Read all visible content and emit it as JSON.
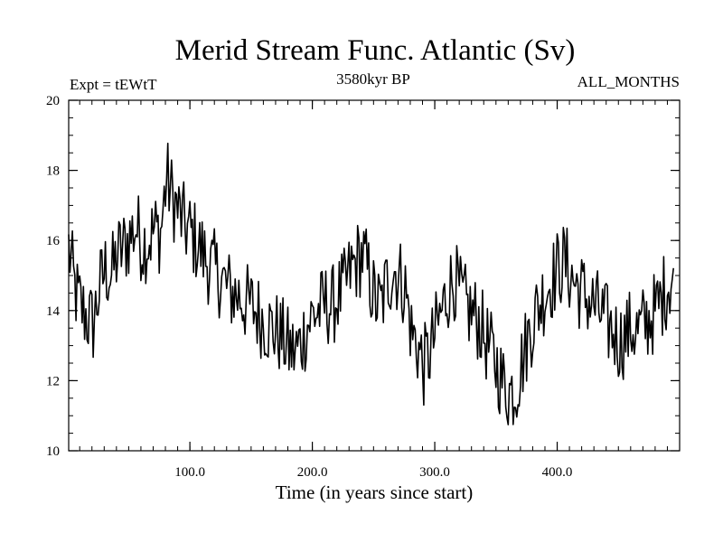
{
  "chart_data": {
    "type": "line",
    "title": "Merid Stream Func. Atlantic (Sv)",
    "subtitle_left": "Expt = tEWtT",
    "subtitle_center": "3580kyr BP",
    "subtitle_right": "ALL_MONTHS",
    "xlabel": "Time (in years since start)",
    "ylabel": "",
    "xlim": [
      1,
      500
    ],
    "ylim": [
      10,
      20
    ],
    "x_ticks": [
      100,
      200,
      300,
      400
    ],
    "x_tick_labels": [
      "100.0",
      "200.0",
      "300.0",
      "400.0"
    ],
    "y_ticks": [
      10,
      12,
      14,
      16,
      18,
      20
    ],
    "y_tick_labels": [
      "10",
      "12",
      "14",
      "16",
      "18",
      "20"
    ],
    "grid": false,
    "line_color": "#000000",
    "series": [
      {
        "name": "Merid Stream Func. Atlantic",
        "x_start": 1,
        "x_step": 5,
        "values": [
          15.8,
          14.6,
          14.1,
          13.8,
          13.6,
          14.6,
          15.2,
          15.0,
          15.6,
          15.8,
          16.1,
          16.4,
          15.9,
          16.0,
          16.3,
          16.2,
          17.8,
          17.2,
          16.8,
          16.4,
          16.2,
          15.9,
          15.6,
          15.3,
          15.1,
          14.9,
          14.6,
          14.5,
          14.4,
          14.2,
          14.1,
          13.9,
          13.7,
          13.5,
          13.4,
          13.2,
          12.9,
          12.8,
          13.1,
          13.6,
          13.9,
          14.0,
          14.2,
          14.1,
          14.4,
          14.6,
          15.1,
          15.4,
          15.6,
          15.0,
          14.3,
          14.1,
          14.8,
          15.2,
          15.0,
          14.6,
          13.4,
          13.0,
          12.4,
          12.8,
          13.4,
          14.0,
          14.6,
          14.9,
          14.4,
          14.1,
          13.9,
          13.7,
          13.2,
          12.8,
          12.4,
          11.9,
          11.7,
          11.8,
          12.5,
          13.2,
          13.8,
          14.2,
          14.6,
          14.9,
          15.2,
          15.4,
          15.0,
          14.7,
          14.5,
          14.3,
          14.1,
          13.9,
          13.6,
          13.4,
          13.1,
          13.3,
          13.5,
          13.4,
          13.6,
          13.8,
          14.0,
          14.4,
          14.8,
          15.1
        ]
      }
    ]
  }
}
